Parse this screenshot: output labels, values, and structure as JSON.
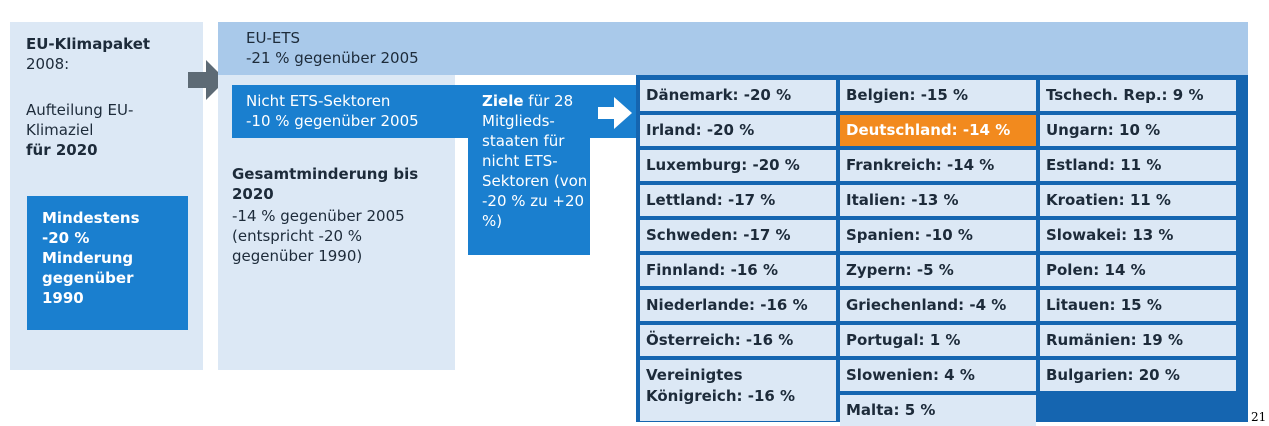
{
  "left_box": {
    "title": "EU-Klimapaket",
    "subtitle": "2008:",
    "text": "Aufteilung EU-Klimaziel",
    "highlight": "für 2020",
    "inner_box": "Mindestens -20 % Minderung gegenüber 1990"
  },
  "ets": {
    "title": "EU-ETS",
    "target": "-21 % gegenüber 2005"
  },
  "non_ets": {
    "title": "Nicht ETS-Sektoren",
    "target": "-10 % gegenüber 2005",
    "total_title": "Gesamtminderung bis 2020",
    "total_text": "-14 % gegenüber 2005 (entspricht -20 % gegenüber 1990)"
  },
  "targets_box": {
    "lead": "Ziele",
    "text": "für 28 Mitglieds­staaten für nicht ETS-Sektoren (von -20 % zu +20 %)"
  },
  "countries": {
    "columns": [
      [
        {
          "label": "Dänemark: -20 %"
        },
        {
          "label": "Irland: -20 %"
        },
        {
          "label": "Luxemburg: -20 %"
        },
        {
          "label": "Lettland: -17 %"
        },
        {
          "label": "Schweden: -17 %"
        },
        {
          "label": "Finnland: -16 %"
        },
        {
          "label": "Niederlande: -16 %"
        },
        {
          "label": "Österreich: -16 %"
        },
        {
          "label": "Vereinigtes Königreich: -16 %"
        }
      ],
      [
        {
          "label": "Belgien: -15 %"
        },
        {
          "label": "Deutschland: -14 %",
          "highlight": true
        },
        {
          "label": "Frankreich: -14 %"
        },
        {
          "label": "Italien: -13 %"
        },
        {
          "label": "Spanien: -10 %"
        },
        {
          "label": "Zypern: -5 %"
        },
        {
          "label": "Griechenland: -4 %"
        },
        {
          "label": "Portugal: 1 %"
        },
        {
          "label": "Slowenien: 4 %"
        },
        {
          "label": "Malta: 5 %"
        }
      ],
      [
        {
          "label": "Tschech. Rep.: 9 %"
        },
        {
          "label": "Ungarn: 10 %"
        },
        {
          "label": "Estland: 11 %"
        },
        {
          "label": "Kroatien: 11 %"
        },
        {
          "label": "Slowakei: 13 %"
        },
        {
          "label": "Polen: 14 %"
        },
        {
          "label": "Litauen: 15 %"
        },
        {
          "label": "Rumänien: 19 %"
        },
        {
          "label": "Bulgarien: 20 %"
        }
      ]
    ]
  },
  "page_number": "21"
}
